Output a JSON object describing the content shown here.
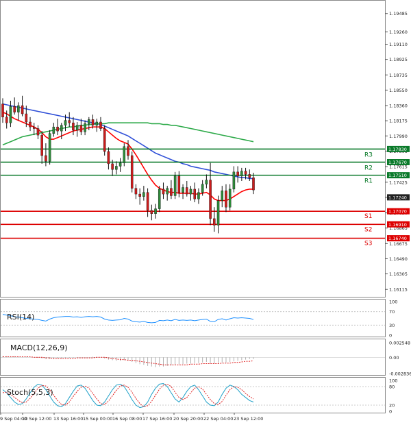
{
  "chart_data": {
    "type": "candlestick",
    "instrument_note": "",
    "price_axis": {
      "ticks": [
        "1.19485",
        "1.19260",
        "1.19110",
        "1.18925",
        "1.18735",
        "1.18550",
        "1.18360",
        "1.18175",
        "1.17990",
        "1.17805",
        "1.17615",
        "1.17425",
        "1.17240",
        "1.17050",
        "1.16865",
        "1.16675",
        "1.16490",
        "1.16305",
        "1.16115"
      ],
      "range": [
        1.1605,
        1.196
      ]
    },
    "time_axis": {
      "ticks": [
        "9 Sep 04:00",
        "10 Sep 12:00",
        "13 Sep 16:00",
        "15 Sep 00:00",
        "16 Sep 08:00",
        "17 Sep 16:00",
        "20 Sep 20:00",
        "22 Sep 04:00",
        "23 Sep 12:00"
      ]
    },
    "candles": [
      [
        1.1838,
        1.1845,
        1.1815,
        1.1822
      ],
      [
        1.1822,
        1.183,
        1.1808,
        1.1815
      ],
      [
        1.1815,
        1.1842,
        1.181,
        1.1835
      ],
      [
        1.1835,
        1.1846,
        1.1825,
        1.1828
      ],
      [
        1.1828,
        1.184,
        1.1818,
        1.1836
      ],
      [
        1.1836,
        1.1848,
        1.1823,
        1.1826
      ],
      [
        1.1826,
        1.1836,
        1.181,
        1.1816
      ],
      [
        1.1816,
        1.1822,
        1.1805,
        1.181
      ],
      [
        1.181,
        1.1815,
        1.18,
        1.1808
      ],
      [
        1.1808,
        1.1812,
        1.1795,
        1.18
      ],
      [
        1.18,
        1.1805,
        1.1765,
        1.1775
      ],
      [
        1.1775,
        1.179,
        1.1762,
        1.1768
      ],
      [
        1.1768,
        1.1806,
        1.1764,
        1.1802
      ],
      [
        1.1802,
        1.1815,
        1.1798,
        1.181
      ],
      [
        1.181,
        1.182,
        1.18,
        1.1805
      ],
      [
        1.1805,
        1.1815,
        1.1795,
        1.1812
      ],
      [
        1.1812,
        1.1825,
        1.1805,
        1.1818
      ],
      [
        1.1818,
        1.1828,
        1.181,
        1.1815
      ],
      [
        1.1815,
        1.1822,
        1.18,
        1.1806
      ],
      [
        1.1806,
        1.1816,
        1.1798,
        1.1812
      ],
      [
        1.1812,
        1.182,
        1.18,
        1.1804
      ],
      [
        1.1804,
        1.1818,
        1.18,
        1.1814
      ],
      [
        1.1814,
        1.1822,
        1.1806,
        1.1819
      ],
      [
        1.1819,
        1.1825,
        1.1808,
        1.1812
      ],
      [
        1.1812,
        1.182,
        1.1804,
        1.1816
      ],
      [
        1.1816,
        1.1822,
        1.1805,
        1.1808
      ],
      [
        1.1808,
        1.1812,
        1.1775,
        1.178
      ],
      [
        1.178,
        1.1785,
        1.1758,
        1.1765
      ],
      [
        1.1765,
        1.177,
        1.175,
        1.1758
      ],
      [
        1.1758,
        1.1768,
        1.1752,
        1.1762
      ],
      [
        1.1762,
        1.1772,
        1.1755,
        1.1766
      ],
      [
        1.1766,
        1.179,
        1.1762,
        1.1786
      ],
      [
        1.1786,
        1.1794,
        1.177,
        1.1775
      ],
      [
        1.1775,
        1.178,
        1.173,
        1.1735
      ],
      [
        1.1735,
        1.174,
        1.1722,
        1.1728
      ],
      [
        1.1728,
        1.1735,
        1.1715,
        1.1725
      ],
      [
        1.1725,
        1.1738,
        1.172,
        1.173
      ],
      [
        1.173,
        1.1735,
        1.17,
        1.1708
      ],
      [
        1.1708,
        1.1715,
        1.1696,
        1.1704
      ],
      [
        1.1704,
        1.1716,
        1.1698,
        1.171
      ],
      [
        1.171,
        1.1738,
        1.1706,
        1.1734
      ],
      [
        1.1734,
        1.1742,
        1.1722,
        1.1728
      ],
      [
        1.1728,
        1.1738,
        1.172,
        1.1735
      ],
      [
        1.1735,
        1.1745,
        1.1722,
        1.1726
      ],
      [
        1.1726,
        1.1755,
        1.1722,
        1.175
      ],
      [
        1.175,
        1.1756,
        1.1724,
        1.173
      ],
      [
        1.173,
        1.174,
        1.1722,
        1.1736
      ],
      [
        1.1736,
        1.1744,
        1.1725,
        1.1728
      ],
      [
        1.1728,
        1.1738,
        1.172,
        1.1734
      ],
      [
        1.1734,
        1.1742,
        1.1718,
        1.1722
      ],
      [
        1.1722,
        1.1735,
        1.1716,
        1.173
      ],
      [
        1.173,
        1.1745,
        1.1726,
        1.174
      ],
      [
        1.174,
        1.1752,
        1.1735,
        1.1745
      ],
      [
        1.1745,
        1.1766,
        1.169,
        1.1698
      ],
      [
        1.1698,
        1.1712,
        1.1682,
        1.169
      ],
      [
        1.169,
        1.1726,
        1.168,
        1.172
      ],
      [
        1.172,
        1.1738,
        1.1712,
        1.1732
      ],
      [
        1.1732,
        1.174,
        1.1706,
        1.1712
      ],
      [
        1.1712,
        1.174,
        1.1708,
        1.1734
      ],
      [
        1.1734,
        1.1762,
        1.173,
        1.1755
      ],
      [
        1.1755,
        1.1762,
        1.1742,
        1.175
      ],
      [
        1.175,
        1.176,
        1.1744,
        1.1756
      ],
      [
        1.1756,
        1.176,
        1.1746,
        1.1752
      ],
      [
        1.1752,
        1.1758,
        1.1744,
        1.1748
      ],
      [
        1.1748,
        1.1754,
        1.1728,
        1.1733
      ]
    ],
    "moving_averages": [
      {
        "name": "",
        "color": "#ff0000",
        "values": [
          1.1828,
          1.1826,
          1.1823,
          1.182,
          1.1818,
          1.1816,
          1.1814,
          1.1812,
          1.181,
          1.1807,
          1.1803,
          1.1798,
          1.1795,
          1.1795,
          1.1797,
          1.1799,
          1.1801,
          1.1803,
          1.1805,
          1.1806,
          1.1807,
          1.1808,
          1.1809,
          1.181,
          1.181,
          1.181,
          1.1808,
          1.1804,
          1.18,
          1.1796,
          1.1793,
          1.1791,
          1.1789,
          1.1783,
          1.1776,
          1.1768,
          1.176,
          1.1752,
          1.1745,
          1.1739,
          1.1735,
          1.1733,
          1.1731,
          1.173,
          1.173,
          1.1729,
          1.1729,
          1.1729,
          1.1729,
          1.1728,
          1.1728,
          1.1729,
          1.173,
          1.1727,
          1.1722,
          1.172,
          1.172,
          1.172,
          1.1722,
          1.1725,
          1.1728,
          1.1731,
          1.1733,
          1.1734,
          1.1734
        ]
      },
      {
        "name": "",
        "color": "#3050d8",
        "values": [
          1.1838,
          1.1837,
          1.1836,
          1.1835,
          1.1834,
          1.1833,
          1.1832,
          1.1831,
          1.183,
          1.1829,
          1.1828,
          1.1827,
          1.1826,
          1.1825,
          1.1824,
          1.1823,
          1.1822,
          1.1821,
          1.182,
          1.1819,
          1.1818,
          1.1817,
          1.1816,
          1.1815,
          1.1814,
          1.1813,
          1.1811,
          1.1809,
          1.1807,
          1.1805,
          1.1803,
          1.1801,
          1.1799,
          1.1796,
          1.1793,
          1.179,
          1.1787,
          1.1784,
          1.1781,
          1.1778,
          1.1776,
          1.1774,
          1.1772,
          1.177,
          1.1768,
          1.1767,
          1.1765,
          1.1764,
          1.1762,
          1.1761,
          1.176,
          1.1759,
          1.1758,
          1.1757,
          1.1755,
          1.1754,
          1.1753,
          1.1752,
          1.1751,
          1.175,
          1.1749,
          1.1748,
          1.1748,
          1.1747,
          1.1747
        ]
      },
      {
        "name": "",
        "color": "#2eaa4a",
        "values": [
          1.1788,
          1.179,
          1.1792,
          1.1794,
          1.1796,
          1.1798,
          1.1799,
          1.18,
          1.1801,
          1.1802,
          1.1803,
          1.1804,
          1.1805,
          1.1806,
          1.1807,
          1.1808,
          1.1809,
          1.181,
          1.181,
          1.1811,
          1.1812,
          1.1812,
          1.1813,
          1.1813,
          1.1814,
          1.1814,
          1.1814,
          1.1815,
          1.1815,
          1.1815,
          1.1815,
          1.1815,
          1.1815,
          1.1815,
          1.1815,
          1.1815,
          1.1815,
          1.1815,
          1.1814,
          1.1814,
          1.1814,
          1.1813,
          1.1813,
          1.1812,
          1.1812,
          1.1811,
          1.181,
          1.1809,
          1.1808,
          1.1807,
          1.1806,
          1.1805,
          1.1804,
          1.1803,
          1.1802,
          1.1801,
          1.18,
          1.1799,
          1.1798,
          1.1797,
          1.1796,
          1.1795,
          1.1794,
          1.1793,
          1.1792
        ]
      }
    ],
    "levels": [
      {
        "name": "R3",
        "value": "1.17830",
        "price": 1.1783,
        "color": "#0a7a2a"
      },
      {
        "name": "R2",
        "value": "1.17670",
        "price": 1.1767,
        "color": "#0a7a2a"
      },
      {
        "name": "R1",
        "value": "1.17510",
        "price": 1.1751,
        "color": "#0a7a2a"
      },
      {
        "name": "S1",
        "value": "1.17070",
        "price": 1.1707,
        "color": "#dd0000"
      },
      {
        "name": "S2",
        "value": "1.16910",
        "price": 1.1691,
        "color": "#dd0000"
      },
      {
        "name": "S3",
        "value": "1.16740",
        "price": 1.1674,
        "color": "#dd0000"
      }
    ],
    "current_price": {
      "value": "1.17240",
      "price": 1.1724
    },
    "indicators": {
      "rsi": {
        "title": "RSI(14)",
        "ticks": [
          "100",
          "70",
          "30",
          "0"
        ],
        "values": [
          62,
          60,
          58,
          55,
          54,
          52,
          50,
          49,
          48,
          47,
          44,
          42,
          48,
          52,
          54,
          55,
          56,
          56,
          54,
          55,
          53,
          55,
          56,
          55,
          56,
          54,
          48,
          45,
          44,
          45,
          46,
          50,
          48,
          42,
          40,
          39,
          41,
          38,
          37,
          38,
          44,
          43,
          45,
          43,
          47,
          44,
          45,
          44,
          45,
          43,
          45,
          47,
          48,
          41,
          40,
          47,
          49,
          45,
          49,
          52,
          51,
          52,
          51,
          50,
          47
        ]
      },
      "macd": {
        "title": "MACD(12,26,9)",
        "ticks": [
          "0.002548",
          "0.00",
          "-0.002836"
        ],
        "histogram": [
          0.0002,
          0.0002,
          0.0002,
          0.0002,
          0.0001,
          0.0001,
          0.0001,
          0.0,
          0.0,
          -0.0001,
          -0.0002,
          -0.0003,
          -0.0003,
          -0.0003,
          -0.0002,
          -0.0002,
          -0.0001,
          -0.0001,
          -0.0001,
          0.0,
          0.0,
          0.0,
          0.0,
          0.0001,
          0.0001,
          0.0,
          -0.0002,
          -0.0004,
          -0.0005,
          -0.0006,
          -0.0006,
          -0.0005,
          -0.0006,
          -0.0008,
          -0.001,
          -0.0012,
          -0.0013,
          -0.0015,
          -0.0016,
          -0.0017,
          -0.0016,
          -0.0016,
          -0.0015,
          -0.0014,
          -0.0013,
          -0.0012,
          -0.0012,
          -0.0011,
          -0.0011,
          -0.001,
          -0.001,
          -0.0009,
          -0.0008,
          -0.001,
          -0.0011,
          -0.001,
          -0.0009,
          -0.0009,
          -0.0008,
          -0.0007,
          -0.0006,
          -0.0005,
          -0.0004,
          -0.0003,
          -0.0003
        ],
        "signal": [
          0.0001,
          0.0001,
          0.0001,
          0.0001,
          0.0001,
          0.0001,
          0.0001,
          0.0001,
          0.0,
          0.0,
          0.0,
          -0.0001,
          -0.0001,
          -0.0002,
          -0.0002,
          -0.0002,
          -0.0002,
          -0.0002,
          -0.0002,
          -0.0001,
          -0.0001,
          -0.0001,
          -0.0001,
          -0.0001,
          0.0,
          0.0,
          0.0,
          -0.0001,
          -0.0002,
          -0.0003,
          -0.0004,
          -0.0004,
          -0.0005,
          -0.0005,
          -0.0006,
          -0.0007,
          -0.0008,
          -0.0009,
          -0.001,
          -0.0011,
          -0.0012,
          -0.0013,
          -0.0013,
          -0.0013,
          -0.0013,
          -0.0013,
          -0.0013,
          -0.0013,
          -0.0012,
          -0.0012,
          -0.0012,
          -0.0011,
          -0.0011,
          -0.0011,
          -0.0011,
          -0.0011,
          -0.001,
          -0.001,
          -0.001,
          -0.0009,
          -0.0009,
          -0.0008,
          -0.0007,
          -0.0007,
          -0.0006
        ],
        "range": [
          -0.002836,
          0.002548
        ]
      },
      "stoch": {
        "title": "Stoch(5,5,3)",
        "ticks": [
          "100",
          "80",
          "20",
          "0"
        ],
        "main": [
          70,
          60,
          45,
          30,
          22,
          25,
          40,
          60,
          78,
          88,
          85,
          70,
          50,
          30,
          18,
          15,
          25,
          45,
          65,
          82,
          85,
          75,
          55,
          35,
          20,
          18,
          30,
          50,
          70,
          85,
          88,
          80,
          60,
          38,
          20,
          12,
          15,
          30,
          55,
          75,
          88,
          90,
          80,
          60,
          40,
          30,
          45,
          65,
          80,
          85,
          70,
          50,
          30,
          20,
          18,
          30,
          55,
          75,
          85,
          80,
          70,
          55,
          45,
          35,
          30
        ],
        "signal": [
          60,
          62,
          55,
          45,
          35,
          28,
          30,
          42,
          58,
          75,
          84,
          82,
          70,
          52,
          35,
          22,
          20,
          30,
          48,
          65,
          78,
          82,
          75,
          58,
          40,
          25,
          22,
          33,
          50,
          68,
          82,
          85,
          78,
          62,
          42,
          25,
          15,
          18,
          32,
          52,
          72,
          85,
          88,
          80,
          62,
          45,
          38,
          45,
          60,
          75,
          80,
          72,
          55,
          38,
          25,
          22,
          32,
          52,
          70,
          80,
          78,
          70,
          58,
          48,
          40
        ]
      }
    }
  }
}
